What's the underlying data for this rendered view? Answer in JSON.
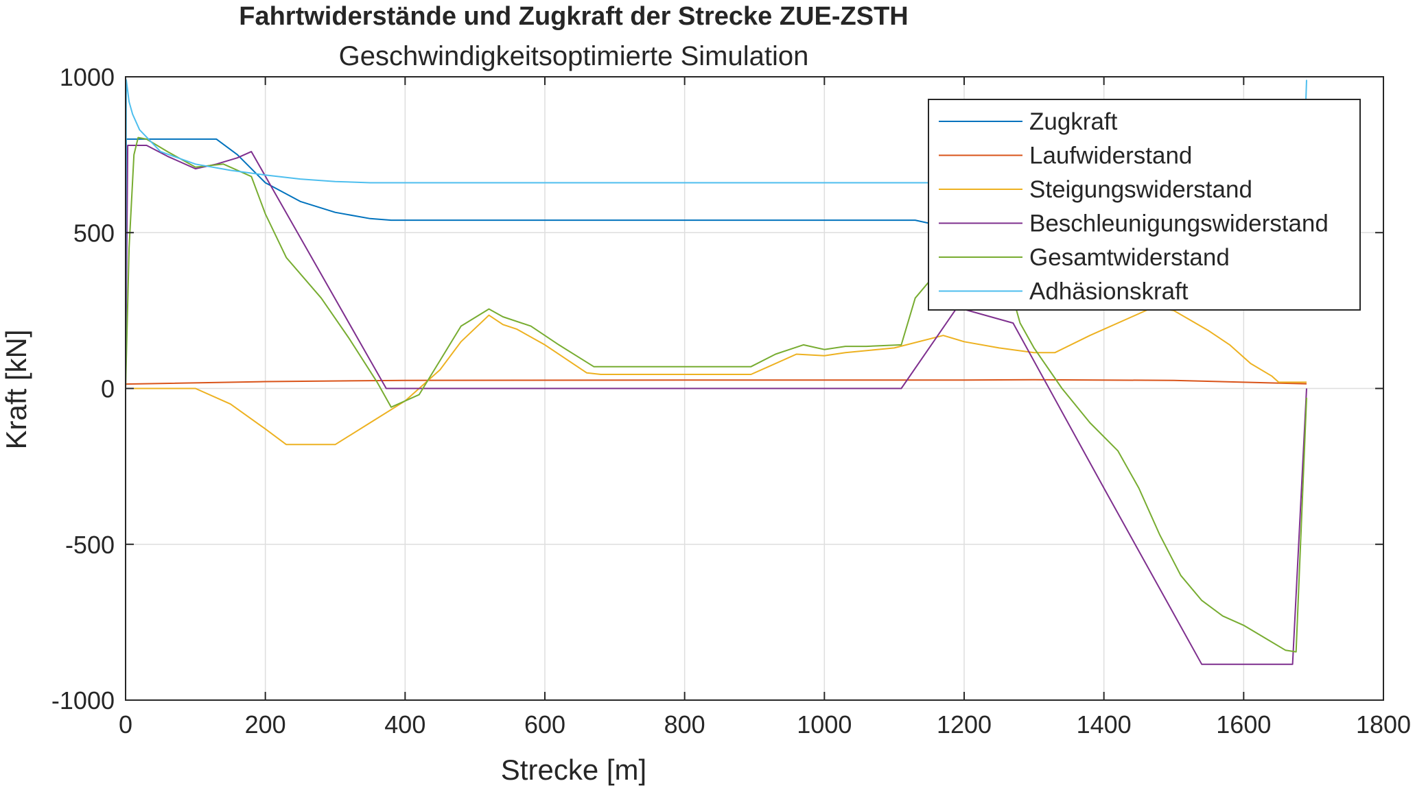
{
  "chart_data": {
    "type": "line",
    "title": "Fahrtwiderstände und Zugkraft der Strecke ZUE-ZSTH",
    "subtitle": "Geschwindigkeitsoptimierte Simulation",
    "xlabel": "Strecke [m]",
    "ylabel": "Kraft [kN]",
    "xlim": [
      0,
      1800
    ],
    "ylim": [
      -1000,
      1000
    ],
    "xticks": [
      0,
      200,
      400,
      600,
      800,
      1000,
      1200,
      1400,
      1600,
      1800
    ],
    "yticks": [
      -1000,
      -500,
      0,
      500,
      1000
    ],
    "xtick_labels": [
      "0",
      "200",
      "400",
      "600",
      "800",
      "1000",
      "1200",
      "1400",
      "1600",
      "1800"
    ],
    "ytick_labels": [
      "-1000",
      "-500",
      "0",
      "500",
      "1000"
    ],
    "grid": true,
    "legend_position": "top-right",
    "series": [
      {
        "name": "Zugkraft",
        "color": "#0072BD",
        "points": [
          [
            0,
            0
          ],
          [
            1,
            800
          ],
          [
            130,
            800
          ],
          [
            160,
            750
          ],
          [
            200,
            660
          ],
          [
            250,
            600
          ],
          [
            300,
            565
          ],
          [
            350,
            545
          ],
          [
            380,
            540
          ],
          [
            1130,
            540
          ],
          [
            1150,
            530
          ],
          [
            1200,
            520
          ],
          [
            1250,
            515
          ],
          [
            1300,
            518
          ]
        ]
      },
      {
        "name": "Laufwiderstand",
        "color": "#D95319",
        "points": [
          [
            0,
            14
          ],
          [
            200,
            22
          ],
          [
            400,
            26
          ],
          [
            800,
            27
          ],
          [
            1200,
            27
          ],
          [
            1300,
            28
          ],
          [
            1500,
            26
          ],
          [
            1690,
            15
          ]
        ]
      },
      {
        "name": "Steigungswiderstand",
        "color": "#EDB120",
        "points": [
          [
            0,
            0
          ],
          [
            100,
            0
          ],
          [
            150,
            -50
          ],
          [
            200,
            -130
          ],
          [
            230,
            -180
          ],
          [
            300,
            -180
          ],
          [
            350,
            -110
          ],
          [
            400,
            -40
          ],
          [
            450,
            60
          ],
          [
            480,
            150
          ],
          [
            520,
            235
          ],
          [
            540,
            205
          ],
          [
            560,
            190
          ],
          [
            600,
            140
          ],
          [
            660,
            50
          ],
          [
            680,
            45
          ],
          [
            800,
            45
          ],
          [
            895,
            45
          ],
          [
            920,
            70
          ],
          [
            960,
            110
          ],
          [
            1000,
            105
          ],
          [
            1030,
            115
          ],
          [
            1100,
            130
          ],
          [
            1170,
            170
          ],
          [
            1200,
            150
          ],
          [
            1250,
            130
          ],
          [
            1300,
            115
          ],
          [
            1330,
            115
          ],
          [
            1380,
            170
          ],
          [
            1440,
            230
          ],
          [
            1470,
            260
          ],
          [
            1500,
            250
          ],
          [
            1550,
            185
          ],
          [
            1580,
            140
          ],
          [
            1610,
            80
          ],
          [
            1640,
            40
          ],
          [
            1650,
            20
          ],
          [
            1690,
            20
          ]
        ]
      },
      {
        "name": "Beschleunigungswiderstand",
        "color": "#7E2F8E",
        "points": [
          [
            0,
            0
          ],
          [
            3,
            780
          ],
          [
            30,
            780
          ],
          [
            60,
            745
          ],
          [
            100,
            705
          ],
          [
            130,
            720
          ],
          [
            160,
            740
          ],
          [
            180,
            760
          ],
          [
            373,
            0
          ],
          [
            1110,
            0
          ],
          [
            1190,
            260
          ],
          [
            1270,
            210
          ],
          [
            1400,
            -320
          ],
          [
            1540,
            -885
          ],
          [
            1670,
            -885
          ],
          [
            1690,
            0
          ]
        ]
      },
      {
        "name": "Gesamtwiderstand",
        "color": "#77AC30",
        "points": [
          [
            0,
            0
          ],
          [
            5,
            450
          ],
          [
            12,
            750
          ],
          [
            18,
            805
          ],
          [
            30,
            800
          ],
          [
            60,
            760
          ],
          [
            100,
            710
          ],
          [
            140,
            720
          ],
          [
            180,
            680
          ],
          [
            200,
            560
          ],
          [
            230,
            420
          ],
          [
            280,
            290
          ],
          [
            320,
            160
          ],
          [
            360,
            20
          ],
          [
            380,
            -60
          ],
          [
            420,
            -20
          ],
          [
            450,
            90
          ],
          [
            480,
            200
          ],
          [
            520,
            255
          ],
          [
            540,
            230
          ],
          [
            580,
            200
          ],
          [
            620,
            140
          ],
          [
            670,
            70
          ],
          [
            700,
            70
          ],
          [
            895,
            70
          ],
          [
            930,
            110
          ],
          [
            970,
            140
          ],
          [
            1000,
            125
          ],
          [
            1030,
            135
          ],
          [
            1060,
            135
          ],
          [
            1110,
            140
          ],
          [
            1130,
            290
          ],
          [
            1160,
            370
          ],
          [
            1200,
            430
          ],
          [
            1250,
            450
          ],
          [
            1280,
            210
          ],
          [
            1300,
            130
          ],
          [
            1340,
            0
          ],
          [
            1380,
            -110
          ],
          [
            1420,
            -200
          ],
          [
            1450,
            -320
          ],
          [
            1480,
            -470
          ],
          [
            1510,
            -600
          ],
          [
            1540,
            -680
          ],
          [
            1570,
            -730
          ],
          [
            1600,
            -760
          ],
          [
            1630,
            -800
          ],
          [
            1660,
            -840
          ],
          [
            1675,
            -845
          ],
          [
            1690,
            -30
          ]
        ]
      },
      {
        "name": "Adhäsionskraft",
        "color": "#4DBEEE",
        "points": [
          [
            0,
            0
          ],
          [
            1,
            990
          ],
          [
            5,
            920
          ],
          [
            10,
            880
          ],
          [
            20,
            830
          ],
          [
            50,
            760
          ],
          [
            100,
            720
          ],
          [
            150,
            700
          ],
          [
            200,
            685
          ],
          [
            250,
            672
          ],
          [
            300,
            664
          ],
          [
            350,
            660
          ],
          [
            1150,
            660
          ],
          [
            1200,
            650
          ],
          [
            1250,
            650
          ],
          [
            1300,
            650
          ],
          [
            1500,
            650
          ],
          [
            1650,
            650
          ],
          [
            1685,
            660
          ],
          [
            1690,
            990
          ]
        ]
      }
    ]
  }
}
